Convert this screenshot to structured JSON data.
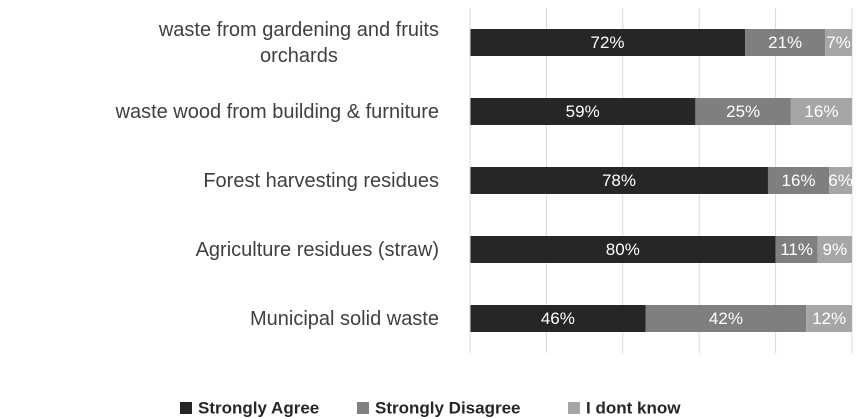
{
  "chart_data": {
    "type": "stacked_barh",
    "categories": [
      "waste from gardening and fruits\norchards",
      "waste wood from building & furniture",
      "Forest harvesting residues",
      "Agriculture residues (straw)",
      "Municipal solid waste"
    ],
    "series": [
      {
        "name": "Strongly Agree",
        "color": "#262626",
        "values": [
          72,
          59,
          78,
          80,
          46
        ],
        "value_labels": [
          "72%",
          "59%",
          "78%",
          "80%",
          "46%"
        ]
      },
      {
        "name": "Strongly Disagree",
        "color": "#7f7f7f",
        "values": [
          21,
          25,
          16,
          11,
          42
        ],
        "value_labels": [
          "21%",
          "25%",
          "16%",
          "11%",
          "42%"
        ]
      },
      {
        "name": "I dont know",
        "color": "#a6a6a6",
        "values": [
          7,
          16,
          6,
          9,
          12
        ],
        "value_labels": [
          "7%",
          "16%",
          "6%",
          "9%",
          "12%"
        ]
      }
    ],
    "xlim": [
      0,
      100
    ],
    "xticks": [
      0,
      20,
      40,
      60,
      80,
      100
    ],
    "grid": true,
    "legend": "bottom"
  }
}
